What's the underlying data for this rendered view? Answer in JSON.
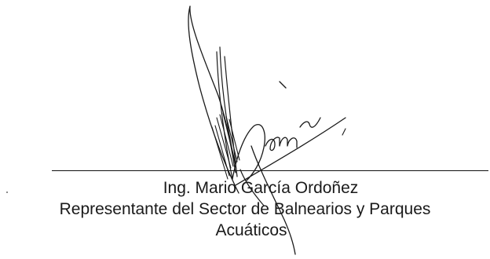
{
  "signatory": {
    "name": "Ing. Mario García Ordoñez",
    "role_line_1": "Representante del Sector de Balnearios y Parques",
    "role_line_2": "Acuáticos"
  },
  "signature": {
    "type": "handwritten-signature",
    "ink_color": "#1a1a1a"
  }
}
